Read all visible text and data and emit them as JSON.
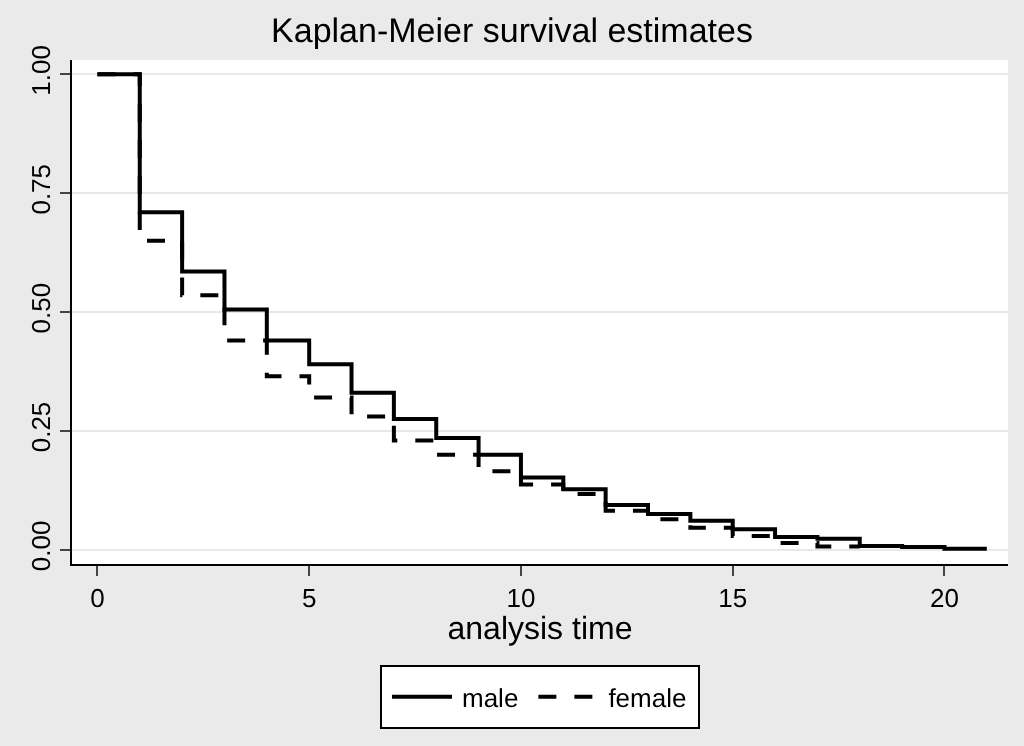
{
  "chart_data": {
    "type": "step",
    "title": "Kaplan-Meier survival estimates",
    "xlabel": "analysis time",
    "series": [
      {
        "name": "male",
        "color": "#000000",
        "line_style": "solid",
        "x": [
          0,
          1,
          2,
          3,
          4,
          5,
          6,
          7,
          8,
          9,
          10,
          11,
          12,
          13,
          14,
          15,
          16,
          17,
          18,
          19,
          20,
          21
        ],
        "values": [
          1,
          0.71,
          0.585,
          0.505,
          0.44,
          0.39,
          0.33,
          0.275,
          0.235,
          0.2,
          0.152,
          0.127,
          0.094,
          0.075,
          0.061,
          0.043,
          0.027,
          0.023,
          0.008,
          0.006,
          0.002,
          0.002
        ]
      },
      {
        "name": "female",
        "color": "#000000",
        "line_style": "dashed",
        "x": [
          0,
          1,
          2,
          3,
          4,
          5,
          6,
          7,
          8,
          9,
          10,
          11,
          12,
          13,
          14,
          15,
          16,
          17,
          18
        ],
        "values": [
          1,
          0.65,
          0.535,
          0.44,
          0.365,
          0.32,
          0.28,
          0.23,
          0.2,
          0.165,
          0.137,
          0.117,
          0.082,
          0.064,
          0.046,
          0.029,
          0.014,
          0.007,
          0.007
        ]
      }
    ],
    "xlim": [
      -0.6,
      21.5
    ],
    "xticks": [
      0,
      5,
      10,
      15,
      20
    ],
    "ylim": [
      -0.03,
      1.03
    ],
    "yticks": [
      {
        "value": 0,
        "label": "0.00"
      },
      {
        "value": 0.25,
        "label": "0.25"
      },
      {
        "value": 0.5,
        "label": "0.50"
      },
      {
        "value": 0.75,
        "label": "0.75"
      },
      {
        "value": 1,
        "label": "1.00"
      }
    ],
    "grid": "y",
    "legend": "bottom"
  }
}
